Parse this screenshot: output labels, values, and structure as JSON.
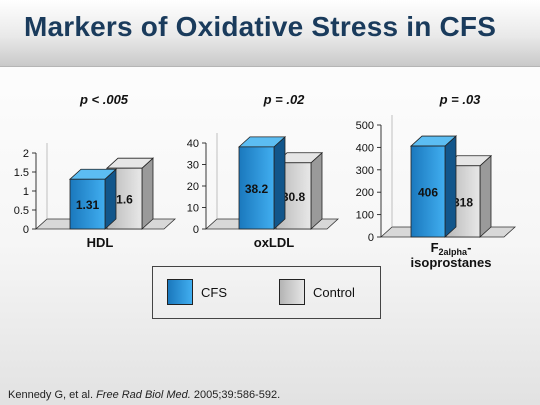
{
  "slide": {
    "title": "Markers of Oxidative Stress in CFS",
    "citation": {
      "authors": "Kennedy G, et al.",
      "journal": "Free Rad Biol Med.",
      "details": "2005;39:586-592."
    }
  },
  "legend": [
    {
      "name": "CFS",
      "color": "#2590d4"
    },
    {
      "name": "Control",
      "color": "#cfcfcf"
    }
  ],
  "chart_data": [
    {
      "type": "bar",
      "title": "p < .005",
      "categories": [
        "HDL"
      ],
      "xlabel": "HDL",
      "ylim": [
        0,
        2
      ],
      "yticks": [
        "0",
        "0.5",
        "1",
        "1.5",
        "2"
      ],
      "series": [
        {
          "name": "CFS",
          "values": [
            1.31
          ],
          "label": "1.31"
        },
        {
          "name": "Control",
          "values": [
            1.6
          ],
          "label": "1.6"
        }
      ]
    },
    {
      "type": "bar",
      "title": "p = .02",
      "categories": [
        "oxLDL"
      ],
      "xlabel": "oxLDL",
      "ylim": [
        0,
        40
      ],
      "yticks": [
        "0",
        "10",
        "20",
        "30",
        "40"
      ],
      "series": [
        {
          "name": "CFS",
          "values": [
            38.2
          ],
          "label": "38.2"
        },
        {
          "name": "Control",
          "values": [
            30.8
          ],
          "label": "30.8"
        }
      ]
    },
    {
      "type": "bar",
      "title": "p = .03",
      "categories": [
        "F2alpha-isoprostanes"
      ],
      "xlabel_main": "F",
      "xlabel_sub": "2alpha",
      "xlabel_suffix": "-",
      "xlabel_line2": "isoprostanes",
      "ylim": [
        0,
        500
      ],
      "yticks": [
        "0",
        "100",
        "200",
        "300",
        "400",
        "500"
      ],
      "series": [
        {
          "name": "CFS",
          "values": [
            406
          ],
          "label": "406"
        },
        {
          "name": "Control",
          "values": [
            318
          ],
          "label": "318"
        }
      ]
    }
  ]
}
